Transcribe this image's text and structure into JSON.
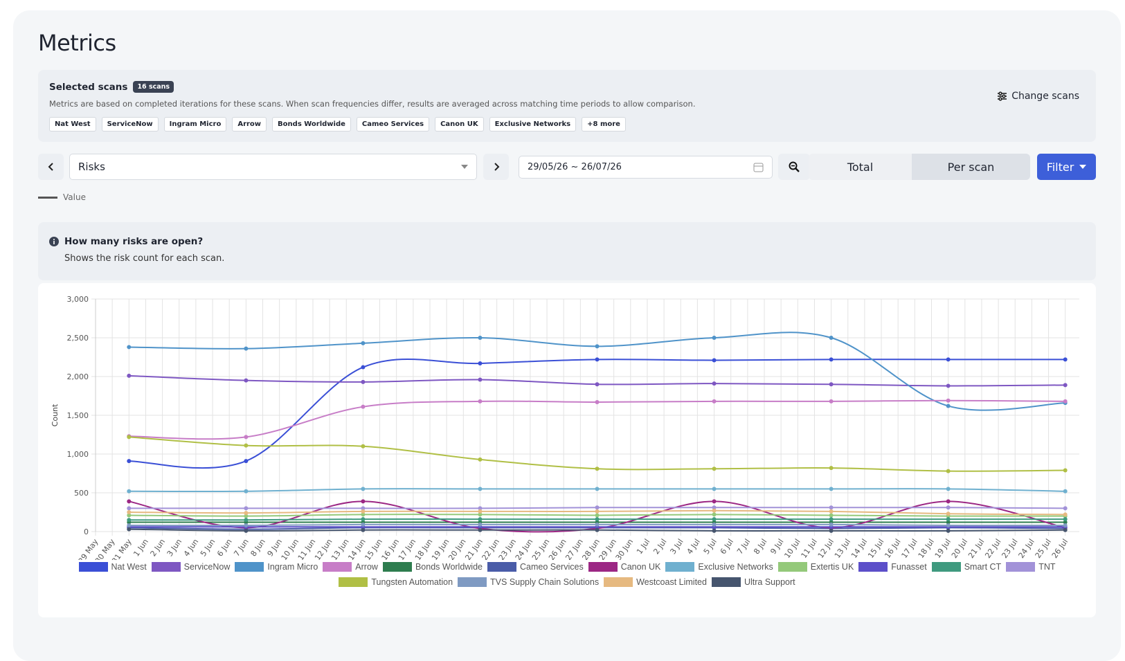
{
  "page": {
    "title": "Metrics",
    "selected_scans": {
      "heading": "Selected scans",
      "badge": "16 scans",
      "description": "Metrics are based on completed iterations for these scans. When scan frequencies differ, results are averaged across matching time periods to allow comparison.",
      "chips": [
        "Nat West",
        "ServiceNow",
        "Ingram Micro",
        "Arrow",
        "Bonds Worldwide",
        "Cameo Services",
        "Canon UK",
        "Exclusive Networks"
      ],
      "more": "+8 more",
      "change_button": "Change scans"
    },
    "controls": {
      "metric": "Risks",
      "date_range": "29/05/26 ~ 26/07/26",
      "toggle": [
        "Total",
        "Per scan"
      ],
      "filter": "Filter"
    },
    "legend_value": "Value",
    "info": {
      "question": "How many risks are open?",
      "description": "Shows the risk count for each scan."
    }
  },
  "chart_data": {
    "type": "line",
    "ylabel": "Count",
    "categories": [
      "29 May",
      "30 May",
      "31 May",
      "1 Jun",
      "2 Jun",
      "3 Jun",
      "4 Jun",
      "5 Jun",
      "6 Jun",
      "7 Jun",
      "8 Jun",
      "9 Jun",
      "10 Jun",
      "11 Jun",
      "12 Jun",
      "13 Jun",
      "14 Jun",
      "15 Jun",
      "16 Jun",
      "17 Jun",
      "18 Jun",
      "19 Jun",
      "20 Jun",
      "21 Jun",
      "22 Jun",
      "23 Jun",
      "24 Jun",
      "25 Jun",
      "26 Jun",
      "27 Jun",
      "28 Jun",
      "29 Jun",
      "30 Jun",
      "1 Jul",
      "2 Jul",
      "3 Jul",
      "4 Jul",
      "5 Jul",
      "6 Jul",
      "7 Jul",
      "8 Jul",
      "9 Jul",
      "10 Jul",
      "11 Jul",
      "12 Jul",
      "13 Jul",
      "14 Jul",
      "15 Jul",
      "16 Jul",
      "17 Jul",
      "18 Jul",
      "19 Jul",
      "20 Jul",
      "21 Jul",
      "22 Jul",
      "23 Jul",
      "24 Jul",
      "25 Jul",
      "26 Jul"
    ],
    "x": [
      "31 May",
      "7 Jun",
      "14 Jun",
      "21 Jun",
      "28 Jun",
      "5 Jul",
      "12 Jul",
      "19 Jul",
      "26 Jul"
    ],
    "series": [
      {
        "name": "Nat West",
        "color": "#3a4fd6",
        "values": [
          910,
          910,
          2120,
          2170,
          2220,
          2210,
          2220,
          2220,
          2220
        ]
      },
      {
        "name": "ServiceNow",
        "color": "#7e57c2",
        "values": [
          2010,
          1950,
          1930,
          1960,
          1900,
          1910,
          1900,
          1880,
          1890
        ]
      },
      {
        "name": "Ingram Micro",
        "color": "#4f93c9",
        "values": [
          2380,
          2360,
          2430,
          2500,
          2390,
          2500,
          2500,
          1620,
          1660
        ]
      },
      {
        "name": "Arrow",
        "color": "#c77dc7",
        "values": [
          1230,
          1220,
          1610,
          1680,
          1670,
          1680,
          1680,
          1690,
          1680
        ]
      },
      {
        "name": "Bonds Worldwide",
        "color": "#2e7d4f",
        "values": [
          120,
          120,
          120,
          120,
          120,
          120,
          120,
          120,
          120
        ]
      },
      {
        "name": "Cameo Services",
        "color": "#4a5ca8",
        "values": [
          50,
          30,
          50,
          50,
          50,
          50,
          40,
          50,
          40
        ]
      },
      {
        "name": "Canon UK",
        "color": "#9c2784",
        "values": [
          390,
          50,
          390,
          40,
          40,
          390,
          50,
          390,
          50
        ]
      },
      {
        "name": "Exclusive Networks",
        "color": "#6fb0cf",
        "values": [
          520,
          520,
          550,
          550,
          550,
          550,
          550,
          550,
          520
        ]
      },
      {
        "name": "Extertis UK",
        "color": "#94c97a",
        "values": [
          210,
          200,
          220,
          220,
          210,
          220,
          210,
          200,
          200
        ]
      },
      {
        "name": "Funasset",
        "color": "#5c4fc9",
        "values": [
          60,
          60,
          60,
          60,
          60,
          60,
          60,
          60,
          60
        ]
      },
      {
        "name": "Smart CT",
        "color": "#3f9a7f",
        "values": [
          150,
          150,
          160,
          160,
          160,
          160,
          160,
          160,
          160
        ]
      },
      {
        "name": "TNT",
        "color": "#a292d8",
        "values": [
          300,
          300,
          300,
          300,
          310,
          310,
          310,
          310,
          300
        ]
      },
      {
        "name": "Tungsten Automation",
        "color": "#b0bf45",
        "values": [
          1220,
          1110,
          1100,
          930,
          810,
          810,
          820,
          780,
          790
        ]
      },
      {
        "name": "TVS Supply Chain Solutions",
        "color": "#7f9ac2",
        "values": [
          80,
          80,
          90,
          90,
          90,
          90,
          90,
          80,
          80
        ]
      },
      {
        "name": "Westcoast Limited",
        "color": "#e6b980",
        "values": [
          250,
          240,
          260,
          260,
          260,
          270,
          260,
          230,
          220
        ]
      },
      {
        "name": "Ultra Support",
        "color": "#46556e",
        "values": [
          30,
          10,
          20,
          20,
          20,
          10,
          10,
          10,
          20
        ]
      }
    ],
    "ylim": [
      0,
      3000
    ],
    "yticks": [
      0,
      500,
      {
        "value": 1000,
        "label": "1,000"
      },
      {
        "value": 1500,
        "label": "1,500"
      },
      {
        "value": 2000,
        "label": "2,000"
      },
      {
        "value": 2500,
        "label": "2,500"
      },
      {
        "value": 3000,
        "label": "3,000"
      }
    ],
    "grid": true,
    "legend": "bottom"
  }
}
